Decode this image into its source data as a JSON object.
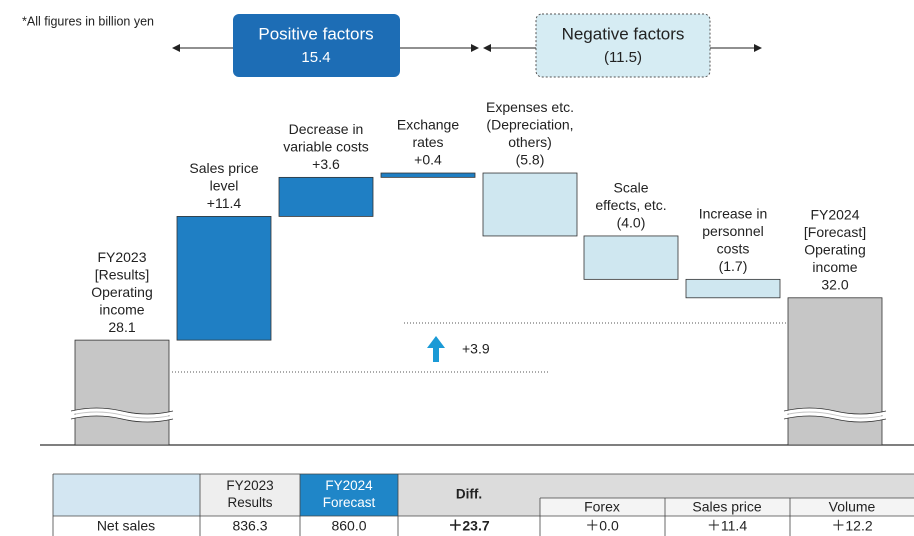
{
  "chart_data": {
    "type": "waterfall",
    "note": "*All figures in billion yen",
    "factors": [
      {
        "label": "Positive factors",
        "total": "15.4"
      },
      {
        "label": "Negative factors",
        "total": "(11.5)"
      }
    ],
    "categories": [
      [
        "FY2023",
        "[Results]",
        "Operating",
        "income"
      ],
      [
        "Sales price",
        "level"
      ],
      [
        "Decrease in",
        "variable costs"
      ],
      [
        "Exchange",
        "rates"
      ],
      [
        "Expenses etc.",
        "(Depreciation,",
        "others)"
      ],
      [
        "Scale",
        "effects, etc."
      ],
      [
        "Increase in",
        "personnel",
        "costs"
      ],
      [
        "FY2024",
        "[Forecast]",
        "Operating",
        "income"
      ]
    ],
    "measure": [
      "absolute",
      "relative",
      "relative",
      "relative",
      "relative",
      "relative",
      "relative",
      "total"
    ],
    "values": [
      28.1,
      11.4,
      3.6,
      0.4,
      -5.8,
      -4.0,
      -1.7,
      32.0
    ],
    "value_labels": [
      "28.1",
      "+11.4",
      "+3.6",
      "+0.4",
      "(5.8)",
      "(4.0)",
      "(1.7)",
      "32.0"
    ],
    "colors": {
      "total": "#c6c6c6",
      "increase": "#1f7fc4",
      "decrease": "#cfe7f0"
    },
    "difference_label": "+3.9",
    "table": {
      "header": [
        [
          "FY2023",
          "Results"
        ],
        [
          "FY2024",
          "Forecast"
        ],
        [
          "Diff."
        ]
      ],
      "subheader": [
        "Forex",
        "Sales price",
        "Volume"
      ],
      "rows": [
        [
          "Net sales",
          "836.3",
          "860.0",
          "＋23.7",
          "＋0.0",
          "＋11.4",
          "＋12.2"
        ]
      ]
    }
  }
}
